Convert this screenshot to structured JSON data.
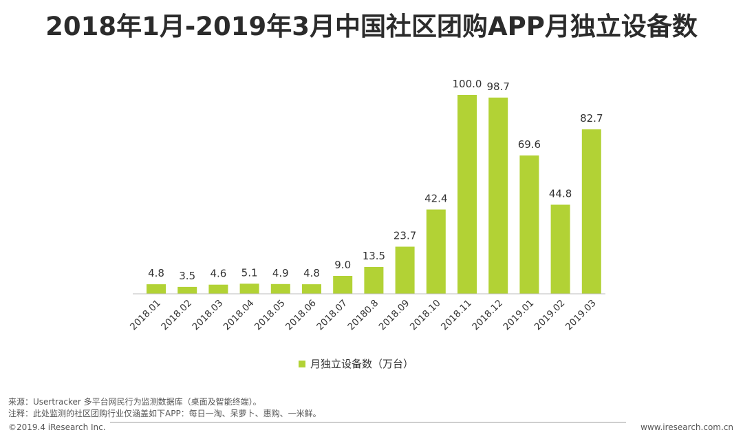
{
  "chart_data": {
    "type": "bar",
    "title": "2018年1月-2019年3月中国社区团购APP月独立设备数",
    "categories": [
      "2018.01",
      "2018.02",
      "2018.03",
      "2018.04",
      "2018.05",
      "2018.06",
      "2018.07",
      "20180.8",
      "2018.09",
      "2018.10",
      "2018.11",
      "2018.12",
      "2019.01",
      "2019.02",
      "2019.03"
    ],
    "series": [
      {
        "name": "月独立设备数（万台）",
        "values": [
          4.8,
          3.5,
          4.6,
          5.1,
          4.9,
          4.8,
          9.0,
          13.5,
          23.7,
          42.4,
          100.0,
          98.7,
          69.6,
          44.8,
          82.7
        ]
      }
    ],
    "value_labels": [
      "4.8",
      "3.5",
      "4.6",
      "5.1",
      "4.9",
      "4.8",
      "9.0",
      "13.5",
      "23.7",
      "42.4",
      "100.0",
      "98.7",
      "69.6",
      "44.8",
      "82.7"
    ],
    "ylim": [
      0,
      100
    ],
    "xlabel": "",
    "ylabel": "",
    "legend": "bottom-center",
    "grid": false,
    "colors": {
      "bar": "#b2d235"
    }
  },
  "footer": {
    "source": "来源：Usertracker 多平台网民行为监测数据库（桌面及智能终端）。",
    "note": "注释：此处监测的社区团购行业仅涵盖如下APP：每日一淘、呆萝卜、惠购、一米鲜。",
    "copyright": "©2019.4 iResearch Inc.",
    "website": "www.iresearch.com.cn"
  }
}
